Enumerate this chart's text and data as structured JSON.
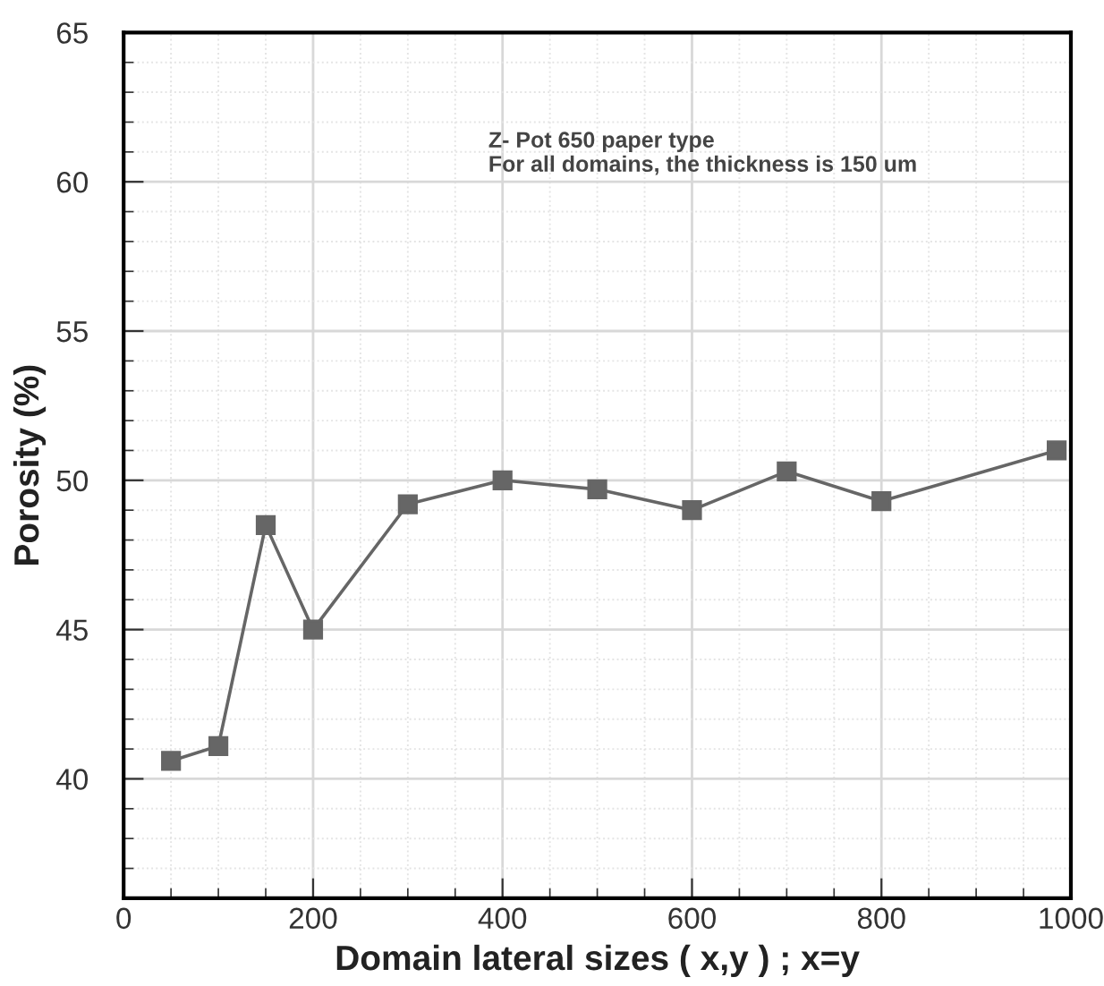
{
  "chart_data": {
    "type": "line",
    "xlabel": "Domain lateral sizes ( x,y ) ; x=y",
    "ylabel": "Porosity (%)",
    "annotations": [
      "Z- Pot 650 paper type\nFor all domains, the thickness is 150 um"
    ],
    "x": [
      50,
      100,
      150,
      200,
      300,
      400,
      500,
      600,
      700,
      800,
      985
    ],
    "series": [
      {
        "color": "#666666",
        "values": [
          40.6,
          41.1,
          48.5,
          45.0,
          49.2,
          50.0,
          49.7,
          49.0,
          50.3,
          49.3,
          51.0
        ]
      }
    ],
    "xlim": [
      0,
      1000
    ],
    "xticks": [
      0,
      200,
      400,
      600,
      800,
      1000
    ],
    "ylim": [
      36,
      65
    ],
    "yticks": [
      40,
      45,
      50,
      55,
      60,
      65
    ],
    "grid": true,
    "marker": "square",
    "line_style": "solid",
    "legend": false
  }
}
